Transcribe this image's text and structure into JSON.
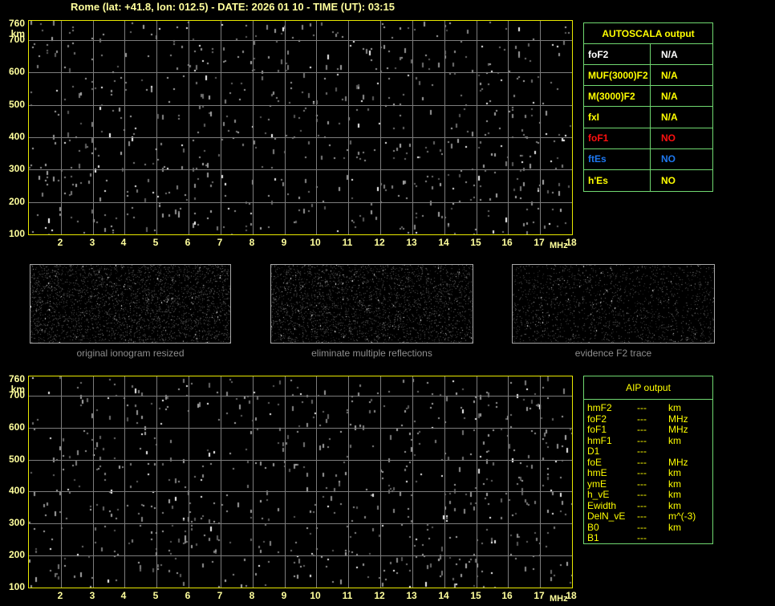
{
  "title": "Rome (lat: +41.8, lon: 012.5) - DATE: 2026 01 10 - TIME (UT): 03:15",
  "colors": {
    "background": "#000000",
    "axis_text": "#ffff9c",
    "plot_border": "#e9e900",
    "grid_line": "#7c7c7c",
    "table_border": "#70d870",
    "table_yellow": "#ffff00",
    "table_white": "#ffffff",
    "table_red": "#ff1010",
    "table_blue": "#1e78f0",
    "caption_gray": "#8e8e8e",
    "thumb_border": "#a8a8a8"
  },
  "axes": {
    "y_unit": "km",
    "y_ticks": [
      760,
      700,
      600,
      500,
      400,
      300,
      200,
      100
    ],
    "y_range": [
      100,
      760
    ],
    "x_ticks": [
      2,
      3,
      4,
      5,
      6,
      7,
      8,
      9,
      10,
      11,
      12,
      13,
      14,
      15,
      16,
      17,
      18
    ],
    "x_unit": "MHz",
    "x_range": [
      1,
      18
    ]
  },
  "autoscala": {
    "title": "AUTOSCALA output",
    "rows": [
      {
        "label": "foF2",
        "value": "N/A",
        "color": "white"
      },
      {
        "label": "MUF(3000)F2",
        "value": "N/A",
        "color": "yellow"
      },
      {
        "label": "M(3000)F2",
        "value": "N/A",
        "color": "yellow"
      },
      {
        "label": "fxI",
        "value": "N/A",
        "color": "yellow"
      },
      {
        "label": "foF1",
        "value": "NO",
        "color": "red"
      },
      {
        "label": "ftEs",
        "value": "NO",
        "color": "blue"
      },
      {
        "label": "h'Es",
        "value": "NO",
        "color": "yellow"
      }
    ]
  },
  "aip": {
    "title": "AIP output",
    "rows": [
      {
        "label": "hmF2",
        "value": "---",
        "unit": "km"
      },
      {
        "label": "foF2",
        "value": "---",
        "unit": "MHz"
      },
      {
        "label": "foF1",
        "value": "---",
        "unit": "MHz"
      },
      {
        "label": "hmF1",
        "value": "---",
        "unit": "km"
      },
      {
        "label": "D1",
        "value": "---",
        "unit": ""
      },
      {
        "label": "foE",
        "value": "---",
        "unit": "MHz"
      },
      {
        "label": "hmE",
        "value": "---",
        "unit": "km"
      },
      {
        "label": "ymE",
        "value": "---",
        "unit": "km"
      },
      {
        "label": "h_vE",
        "value": "---",
        "unit": "km"
      },
      {
        "label": "Ewidth",
        "value": "---",
        "unit": "km"
      },
      {
        "label": "DelN_vE",
        "value": "---",
        "unit": "m^(-3)"
      },
      {
        "label": "B0",
        "value": "---",
        "unit": "km"
      },
      {
        "label": "B1",
        "value": "---",
        "unit": ""
      }
    ]
  },
  "thumbnails": [
    {
      "caption": "original ionogram resized"
    },
    {
      "caption": "eliminate multiple reflections"
    },
    {
      "caption": "evidence F2 trace"
    }
  ],
  "chart_data": [
    {
      "type": "scatter",
      "position": "top-ionogram",
      "xlabel": "MHz",
      "ylabel": "km",
      "xlim": [
        1,
        18
      ],
      "ylim": [
        100,
        760
      ],
      "x_ticks": [
        2,
        3,
        4,
        5,
        6,
        7,
        8,
        9,
        10,
        11,
        12,
        13,
        14,
        15,
        16,
        17,
        18
      ],
      "y_ticks": [
        760,
        700,
        600,
        500,
        400,
        300,
        200,
        100
      ],
      "grid": true,
      "series": []
    },
    {
      "type": "scatter",
      "position": "bottom-ionogram",
      "xlabel": "MHz",
      "ylabel": "km",
      "xlim": [
        1,
        18
      ],
      "ylim": [
        100,
        760
      ],
      "x_ticks": [
        2,
        3,
        4,
        5,
        6,
        7,
        8,
        9,
        10,
        11,
        12,
        13,
        14,
        15,
        16,
        17,
        18
      ],
      "y_ticks": [
        760,
        700,
        600,
        500,
        400,
        300,
        200,
        100
      ],
      "grid": true,
      "series": []
    }
  ],
  "noise": {
    "ionogram_plots": {
      "speck_count": 700,
      "bright_ratio": 0.12
    },
    "thumbnails": [
      {
        "dot_count": 3000,
        "bright_count": 80
      },
      {
        "dot_count": 2800,
        "bright_count": 80
      },
      {
        "dot_count": 1700,
        "bright_count": 60
      }
    ]
  }
}
